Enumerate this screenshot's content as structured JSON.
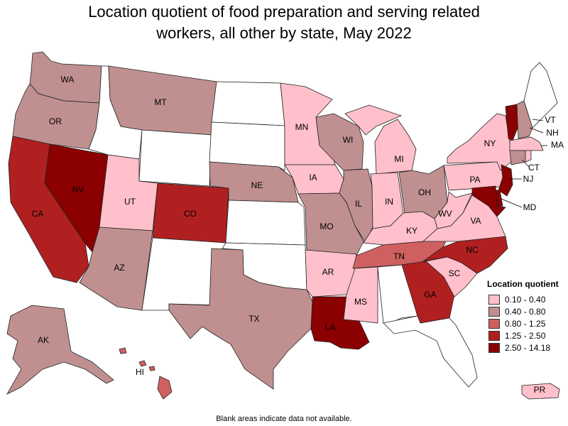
{
  "title_line1": "Location quotient of food preparation and serving related",
  "title_line2": "workers, all other by state, May 2022",
  "legend": {
    "title": "Location quotient",
    "items": [
      {
        "label": "0.10 - 0.40",
        "color": "#ffc0cb"
      },
      {
        "label": "0.40 - 0.80",
        "color": "#c09090"
      },
      {
        "label": "0.80 - 1.25",
        "color": "#d06060"
      },
      {
        "label": "1.25 - 2.50",
        "color": "#b02020"
      },
      {
        "label": "2.50 - 14.18",
        "color": "#8b0000"
      }
    ]
  },
  "no_data_color": "#ffffff",
  "note": "Blank areas indicate data not available.",
  "states": [
    {
      "abbr": "WA",
      "cls": 1
    },
    {
      "abbr": "OR",
      "cls": 1
    },
    {
      "abbr": "CA",
      "cls": 3
    },
    {
      "abbr": "NV",
      "cls": 4
    },
    {
      "abbr": "ID",
      "cls": null
    },
    {
      "abbr": "MT",
      "cls": 1
    },
    {
      "abbr": "WY",
      "cls": null
    },
    {
      "abbr": "UT",
      "cls": 0
    },
    {
      "abbr": "AZ",
      "cls": 1
    },
    {
      "abbr": "CO",
      "cls": 3
    },
    {
      "abbr": "NM",
      "cls": null
    },
    {
      "abbr": "ND",
      "cls": null
    },
    {
      "abbr": "SD",
      "cls": null
    },
    {
      "abbr": "NE",
      "cls": 1
    },
    {
      "abbr": "KS",
      "cls": null
    },
    {
      "abbr": "OK",
      "cls": null
    },
    {
      "abbr": "TX",
      "cls": 1
    },
    {
      "abbr": "MN",
      "cls": 0
    },
    {
      "abbr": "IA",
      "cls": 0
    },
    {
      "abbr": "MO",
      "cls": 1
    },
    {
      "abbr": "AR",
      "cls": 0
    },
    {
      "abbr": "LA",
      "cls": 4
    },
    {
      "abbr": "WI",
      "cls": 1
    },
    {
      "abbr": "IL",
      "cls": 1
    },
    {
      "abbr": "MI",
      "cls": 0
    },
    {
      "abbr": "IN",
      "cls": 0
    },
    {
      "abbr": "OH",
      "cls": 1
    },
    {
      "abbr": "KY",
      "cls": 0
    },
    {
      "abbr": "TN",
      "cls": 2
    },
    {
      "abbr": "MS",
      "cls": 0
    },
    {
      "abbr": "AL",
      "cls": null
    },
    {
      "abbr": "GA",
      "cls": 3
    },
    {
      "abbr": "FL",
      "cls": null
    },
    {
      "abbr": "SC",
      "cls": 0
    },
    {
      "abbr": "NC",
      "cls": 3
    },
    {
      "abbr": "VA",
      "cls": 0
    },
    {
      "abbr": "WV",
      "cls": 0
    },
    {
      "abbr": "PA",
      "cls": 0
    },
    {
      "abbr": "NY",
      "cls": 0
    },
    {
      "abbr": "VT",
      "cls": 4
    },
    {
      "abbr": "NH",
      "cls": 1
    },
    {
      "abbr": "ME",
      "cls": null
    },
    {
      "abbr": "MA",
      "cls": 0
    },
    {
      "abbr": "CT",
      "cls": 1
    },
    {
      "abbr": "RI",
      "cls": 0
    },
    {
      "abbr": "NJ",
      "cls": 4
    },
    {
      "abbr": "DE",
      "cls": 4
    },
    {
      "abbr": "MD",
      "cls": 4
    },
    {
      "abbr": "AK",
      "cls": 1
    },
    {
      "abbr": "HI",
      "cls": 2
    },
    {
      "abbr": "PR",
      "cls": 0
    }
  ],
  "labels": [
    "WA",
    "OR",
    "CA",
    "NV",
    "MT",
    "UT",
    "AZ",
    "CO",
    "NE",
    "TX",
    "MN",
    "IA",
    "MO",
    "AR",
    "LA",
    "WI",
    "IL",
    "MI",
    "IN",
    "OH",
    "KY",
    "TN",
    "MS",
    "GA",
    "SC",
    "NC",
    "VA",
    "WV",
    "PA",
    "NY",
    "VT",
    "NH",
    "MA",
    "CT",
    "NJ",
    "MD",
    "AK",
    "HI",
    "PR"
  ]
}
